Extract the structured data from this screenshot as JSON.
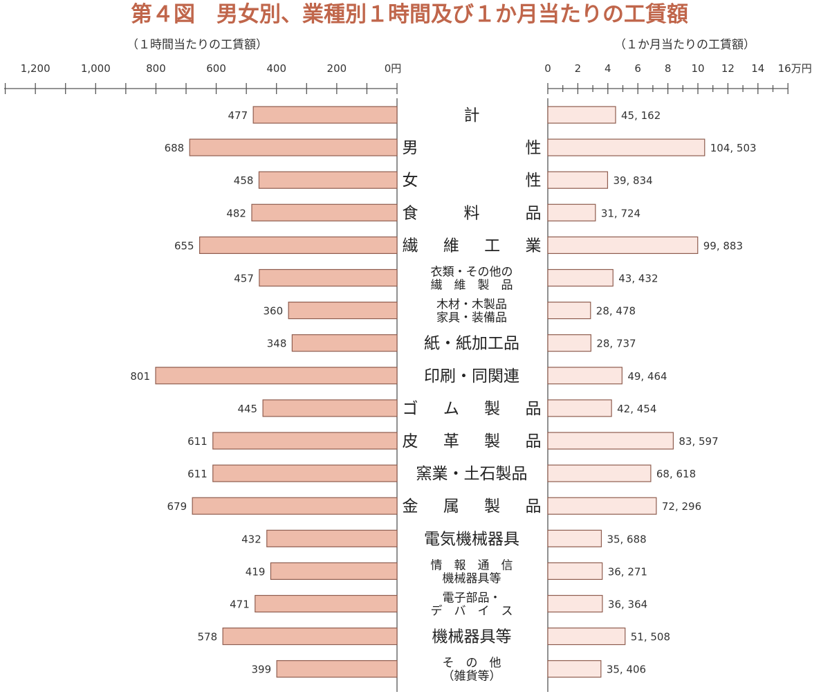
{
  "chart_data": [
    {
      "type": "bar",
      "title": "第４図　男女別、業種別１時間及び１か月当たりの工賃額",
      "subtitle": "（１時間当たりの工賃額）",
      "orientation": "horizontal",
      "direction": "leftward",
      "xlim": [
        0,
        1300
      ],
      "ticks": [
        {
          "value": 1200,
          "label": "1,200"
        },
        {
          "value": 1000,
          "label": "1,000"
        },
        {
          "value": 800,
          "label": "800"
        },
        {
          "value": 600,
          "label": "600"
        },
        {
          "value": 400,
          "label": "400"
        },
        {
          "value": 200,
          "label": "200"
        },
        {
          "value": 0,
          "label": "0円"
        }
      ],
      "categories": [
        [
          "計"
        ],
        [
          "男",
          "性"
        ],
        [
          "女",
          "性"
        ],
        [
          "食",
          "料",
          "品"
        ],
        [
          "繊",
          "維",
          "工",
          "業"
        ],
        [
          "衣類・その他の",
          "繊　維　製　品"
        ],
        [
          "木材・木製品",
          "家具・装備品"
        ],
        [
          "紙・紙加工品"
        ],
        [
          "印刷・同関連"
        ],
        [
          "ゴ",
          "ム",
          "製",
          "品"
        ],
        [
          "皮",
          "革",
          "製",
          "品"
        ],
        [
          "窯業・土石製品"
        ],
        [
          "金",
          "属",
          "製",
          "品"
        ],
        [
          "電気機械器具"
        ],
        [
          "情　報　通　信",
          "機械器具等"
        ],
        [
          "電子部品・",
          "デ　バ　イ　ス"
        ],
        [
          "機械器具等"
        ],
        [
          "そ　の　他",
          "（雑貨等）"
        ]
      ],
      "values": [
        477,
        688,
        458,
        482,
        655,
        457,
        360,
        348,
        801,
        445,
        611,
        611,
        679,
        432,
        419,
        471,
        578,
        399
      ],
      "value_labels": [
        "477",
        "688",
        "458",
        "482",
        "655",
        "457",
        "360",
        "348",
        "801",
        "445",
        "611",
        "611",
        "679",
        "432",
        "419",
        "471",
        "578",
        "399"
      ],
      "color": "#eebcaa"
    },
    {
      "type": "bar",
      "subtitle": "（１か月当たりの工賃額）",
      "orientation": "horizontal",
      "direction": "rightward",
      "xlim": [
        0,
        16
      ],
      "unit_scale": 10000,
      "ticks": [
        {
          "value": 0,
          "label": "0"
        },
        {
          "value": 2,
          "label": "2"
        },
        {
          "value": 4,
          "label": "4"
        },
        {
          "value": 6,
          "label": "6"
        },
        {
          "value": 8,
          "label": "8"
        },
        {
          "value": 10,
          "label": "10"
        },
        {
          "value": 12,
          "label": "12"
        },
        {
          "value": 14,
          "label": "14"
        },
        {
          "value": 16,
          "label": "16万円"
        }
      ],
      "values": [
        45162,
        104503,
        39834,
        31724,
        99883,
        43432,
        28478,
        28737,
        49464,
        42454,
        83597,
        68618,
        72296,
        35688,
        36271,
        36364,
        51508,
        35406
      ],
      "value_labels": [
        "45, 162",
        "104, 503",
        "39, 834",
        "31, 724",
        "99, 883",
        "43, 432",
        "28, 478",
        "28, 737",
        "49, 464",
        "42, 454",
        "83, 597",
        "68, 618",
        "72, 296",
        "35, 688",
        "36, 271",
        "36, 364",
        "51, 508",
        "35, 406"
      ],
      "color": "#fbe7e1"
    }
  ]
}
